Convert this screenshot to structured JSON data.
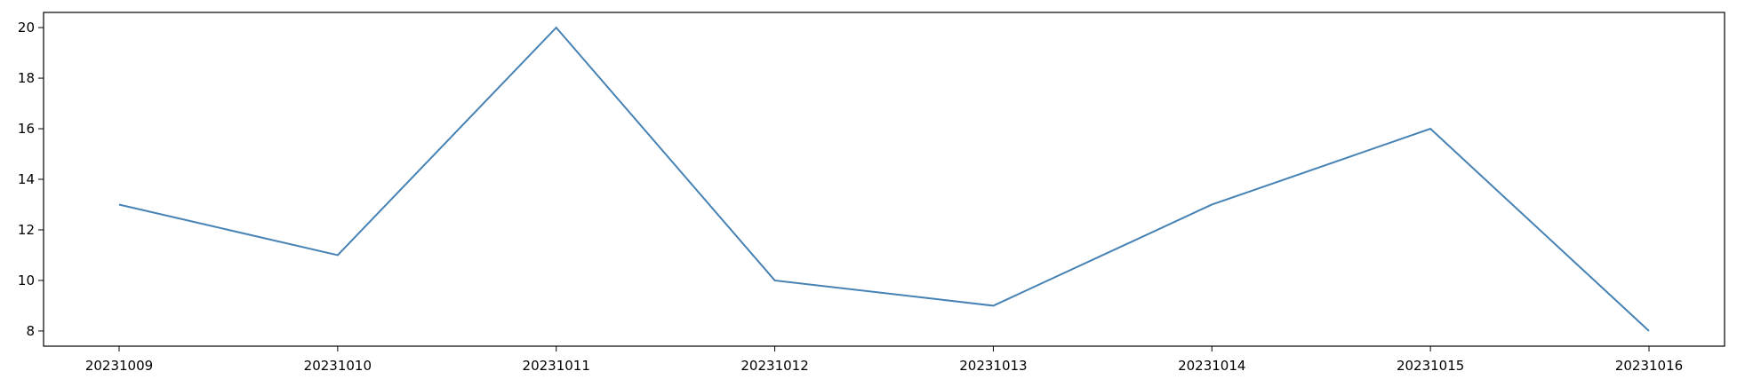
{
  "chart_data": {
    "type": "line",
    "title": "",
    "xlabel": "",
    "ylabel": "",
    "categories": [
      "20231009",
      "20231010",
      "20231011",
      "20231012",
      "20231013",
      "20231014",
      "20231015",
      "20231016"
    ],
    "series": [
      {
        "values": [
          13,
          11,
          20,
          10,
          9,
          13,
          16,
          8
        ]
      }
    ],
    "ylim": [
      7.4,
      20.6
    ],
    "yticks": [
      8,
      10,
      12,
      14,
      16,
      18,
      20
    ],
    "grid": false,
    "legend": "none"
  },
  "colors": {
    "line": "#4682b4",
    "axes": "#000000"
  }
}
